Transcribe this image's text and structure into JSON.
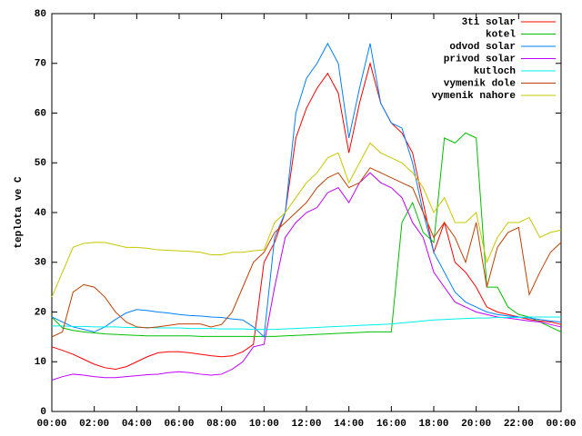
{
  "chart_data": {
    "type": "line",
    "ylabel": "teplota ve C",
    "x": [
      0,
      0.5,
      1,
      1.5,
      2,
      2.5,
      3,
      3.5,
      4,
      4.5,
      5,
      5.5,
      6,
      6.5,
      7,
      7.5,
      8,
      8.5,
      9,
      9.5,
      10,
      10.5,
      11,
      11.5,
      12,
      12.5,
      13,
      13.5,
      14,
      14.5,
      15,
      15.5,
      16,
      16.5,
      17,
      17.5,
      18,
      18.5,
      19,
      19.5,
      20,
      20.5,
      21,
      21.5,
      22,
      22.5,
      23,
      23.5,
      24
    ],
    "xlim": [
      0,
      24
    ],
    "xticks": [
      {
        "value": 0,
        "label": "00:00"
      },
      {
        "value": 2,
        "label": "02:00"
      },
      {
        "value": 4,
        "label": "04:00"
      },
      {
        "value": 6,
        "label": "06:00"
      },
      {
        "value": 8,
        "label": "08:00"
      },
      {
        "value": 10,
        "label": "10:00"
      },
      {
        "value": 12,
        "label": "12:00"
      },
      {
        "value": 14,
        "label": "14:00"
      },
      {
        "value": 16,
        "label": "16:00"
      },
      {
        "value": 18,
        "label": "18:00"
      },
      {
        "value": 20,
        "label": "20:00"
      },
      {
        "value": 22,
        "label": "22:00"
      },
      {
        "value": 24,
        "label": "00:00"
      }
    ],
    "ylim": [
      0,
      80
    ],
    "yticks": [
      0,
      10,
      20,
      30,
      40,
      50,
      60,
      70,
      80
    ],
    "grid": false,
    "legend": "top-right",
    "series": [
      {
        "name": "3ti solar",
        "color": "#ff0000",
        "values": [
          13,
          12.3,
          11.5,
          10.5,
          9.5,
          8.8,
          8.5,
          9,
          10,
          11,
          11.8,
          12,
          12,
          11.8,
          11.5,
          11.2,
          11,
          11.2,
          12,
          13.5,
          30,
          34,
          40,
          55,
          61,
          65,
          68,
          64,
          52,
          62,
          70,
          62,
          58,
          56,
          52,
          42,
          32,
          38,
          30,
          28,
          25,
          21,
          20,
          19.5,
          19,
          18.5,
          18.2,
          18,
          17.5
        ]
      },
      {
        "name": "kotel",
        "color": "#00c000",
        "values": [
          19,
          16.8,
          16.3,
          16,
          15.8,
          15.6,
          15.5,
          15.4,
          15.3,
          15.2,
          15.2,
          15.2,
          15.2,
          15.2,
          15.1,
          15.1,
          15.1,
          15.1,
          15.1,
          15.1,
          15.1,
          15.1,
          15.2,
          15.3,
          15.4,
          15.5,
          15.6,
          15.7,
          15.8,
          15.9,
          16,
          16,
          16,
          38,
          42,
          36,
          34,
          55,
          54,
          56,
          55,
          25,
          25,
          21,
          19.5,
          19,
          18,
          17,
          16
        ]
      },
      {
        "name": "odvod solar",
        "color": "#0080ff",
        "values": [
          19,
          18,
          17,
          16.5,
          16,
          17,
          18.5,
          19.8,
          20.5,
          20.3,
          20,
          19.8,
          19.5,
          19.3,
          19.2,
          19,
          18.9,
          18.6,
          18.4,
          17,
          15,
          35,
          40,
          60,
          67,
          70,
          74,
          70,
          55,
          65,
          74,
          62,
          58,
          57,
          50,
          40,
          32,
          28,
          24,
          22,
          21,
          20,
          19.5,
          19.2,
          19,
          18.8,
          18.5,
          18.2,
          18
        ]
      },
      {
        "name": "privod solar",
        "color": "#c000ff",
        "values": [
          6.3,
          7,
          7.5,
          7.3,
          7,
          6.8,
          6.8,
          7,
          7.2,
          7.4,
          7.5,
          7.8,
          8,
          7.8,
          7.5,
          7.3,
          7.5,
          8.5,
          10,
          13,
          13.5,
          25,
          35,
          38,
          40,
          41,
          44,
          45,
          42,
          46,
          48,
          46,
          45,
          43,
          38,
          35,
          28,
          25,
          22,
          21,
          20,
          19.5,
          19,
          18.8,
          18.5,
          18.2,
          18,
          17.5,
          17
        ]
      },
      {
        "name": "kutloch",
        "color": "#00eeee",
        "values": [
          17.2,
          17.2,
          17.1,
          17.1,
          17,
          17,
          17,
          16.9,
          16.9,
          16.9,
          16.8,
          16.8,
          16.8,
          16.7,
          16.7,
          16.7,
          16.6,
          16.6,
          16.6,
          16.5,
          16.5,
          16.5,
          16.6,
          16.7,
          16.8,
          16.9,
          17,
          17.1,
          17.2,
          17.3,
          17.4,
          17.5,
          17.6,
          17.8,
          18,
          18.2,
          18.4,
          18.5,
          18.6,
          18.7,
          18.8,
          18.8,
          18.9,
          18.9,
          18.9,
          19,
          19,
          19,
          19
        ]
      },
      {
        "name": "vymenik dole",
        "color": "#c04000",
        "values": [
          15,
          16,
          24,
          25.5,
          25,
          23,
          20,
          18,
          17,
          16.8,
          17,
          17.3,
          17.6,
          17.6,
          17.6,
          17,
          17.5,
          20,
          25,
          30,
          32,
          36,
          38,
          40,
          42,
          45,
          47,
          48,
          45,
          46,
          49,
          48,
          47,
          46,
          45,
          40,
          35,
          38,
          35,
          30,
          38,
          25,
          33,
          36,
          37,
          23.5,
          28,
          32,
          34
        ]
      },
      {
        "name": "vymenik nahore",
        "color": "#c8c800",
        "values": [
          23,
          28,
          33,
          33.8,
          34,
          34,
          33.5,
          33,
          33,
          32.8,
          32.5,
          32.4,
          32.3,
          32.2,
          32,
          31.5,
          31.5,
          32,
          32,
          32.3,
          32.5,
          38,
          40,
          43,
          46,
          48,
          51,
          52,
          46,
          50,
          54,
          52,
          51,
          50,
          48,
          45,
          40,
          43,
          38,
          38,
          40,
          30,
          35,
          38,
          38,
          39,
          35,
          36,
          36.5
        ]
      }
    ]
  }
}
